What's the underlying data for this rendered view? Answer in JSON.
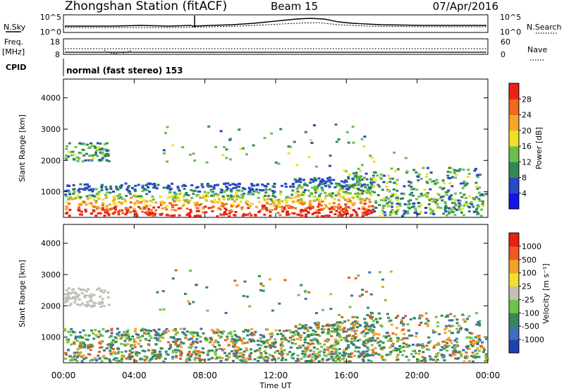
{
  "header": {
    "station": "Zhongshan Station (fitACF)",
    "beam": "Beam 15",
    "date": "07/Apr/2016"
  },
  "noise_panel": {
    "left_label": "N.Sky",
    "right_label": "N.Search",
    "left_ticks": [
      "10^5",
      "10^0"
    ],
    "right_ticks": [
      "10^5",
      "10^0"
    ]
  },
  "freq_panel": {
    "left_label_1": "Freq.",
    "left_label_2": "[MHz]",
    "right_label": "Nave",
    "left_ticks": [
      "18",
      "8"
    ],
    "right_ticks": [
      "60",
      "0"
    ]
  },
  "cpid": {
    "label": "CPID",
    "text": "normal (fast stereo) 153"
  },
  "chart_data": [
    {
      "type": "heatmap",
      "name": "power",
      "ylabel": "Slant Range [km]",
      "yticks": [
        1000,
        2000,
        3000,
        4000
      ],
      "ylim": [
        180,
        4600
      ],
      "xlim": [
        0,
        24
      ],
      "colorbar": {
        "label": "Power [dB]",
        "ticks": [
          "4",
          "8",
          "12",
          "16",
          "20",
          "24",
          "28"
        ],
        "colors": [
          "#1414f0",
          "#2848c8",
          "#2f8a56",
          "#69c04e",
          "#f0e024",
          "#f5a72a",
          "#ee6a1e",
          "#e82416"
        ]
      }
    },
    {
      "type": "heatmap",
      "name": "velocity",
      "ylabel": "Slant Range [km]",
      "yticks": [
        1000,
        2000,
        3000,
        4000
      ],
      "ylim": [
        180,
        4600
      ],
      "xlim": [
        0,
        24
      ],
      "xlabel": "Time UT",
      "xticks": [
        "00:00",
        "04:00",
        "08:00",
        "12:00",
        "16:00",
        "20:00",
        "00:00"
      ],
      "colorbar": {
        "label": "Velocity [m s⁻¹]",
        "ticks": [
          "1000",
          "500",
          "100",
          "25",
          "-25",
          "-100",
          "-500",
          "-1000"
        ],
        "colors": [
          "#2040b0",
          "#3f6fb8",
          "#36885a",
          "#70c24a",
          "#c0c0b8",
          "#f2e030",
          "#f5a02a",
          "#ee5a1e",
          "#e82016"
        ]
      }
    }
  ]
}
